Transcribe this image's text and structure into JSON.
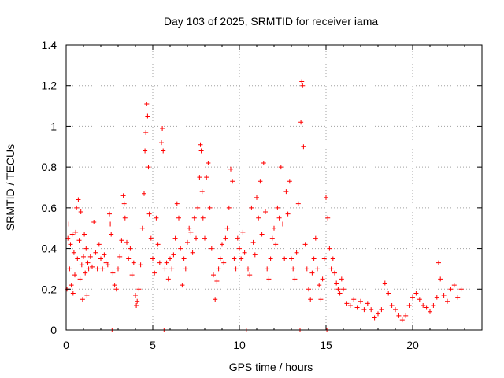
{
  "chart_data": {
    "type": "scatter",
    "title": "Day 103 of 2025, SRMTID for receiver iama",
    "xlabel": "GPS time / hours",
    "ylabel": "SRMTID / TECUs",
    "xlim": [
      0,
      24
    ],
    "ylim": [
      0,
      1.4
    ],
    "xticks": [
      0,
      5,
      10,
      15,
      20
    ],
    "xtick_labels": [
      "0",
      "5",
      "10",
      "15",
      "20"
    ],
    "yticks": [
      0,
      0.2,
      0.4,
      0.6,
      0.8,
      1.0,
      1.2,
      1.4
    ],
    "ytick_labels": [
      "0",
      "0.2",
      "0.4",
      "0.6",
      "0.8",
      "1",
      "1.2",
      "1.4"
    ],
    "grid": true,
    "marker": "+",
    "series": [
      {
        "name": "SRMTID",
        "color": "#ff0000",
        "points": [
          [
            0.05,
            0.2
          ],
          [
            0.1,
            0.45
          ],
          [
            0.15,
            0.52
          ],
          [
            0.2,
            0.3
          ],
          [
            0.25,
            0.42
          ],
          [
            0.3,
            0.22
          ],
          [
            0.35,
            0.47
          ],
          [
            0.4,
            0.18
          ],
          [
            0.45,
            0.38
          ],
          [
            0.5,
            0.27
          ],
          [
            0.55,
            0.48
          ],
          [
            0.6,
            0.6
          ],
          [
            0.65,
            0.35
          ],
          [
            0.7,
            0.64
          ],
          [
            0.75,
            0.44
          ],
          [
            0.8,
            0.25
          ],
          [
            0.85,
            0.58
          ],
          [
            0.9,
            0.32
          ],
          [
            0.95,
            0.15
          ],
          [
            1.0,
            0.36
          ],
          [
            1.05,
            0.47
          ],
          [
            1.1,
            0.28
          ],
          [
            1.15,
            0.4
          ],
          [
            1.2,
            0.17
          ],
          [
            1.25,
            0.33
          ],
          [
            1.3,
            0.3
          ],
          [
            1.4,
            0.36
          ],
          [
            1.5,
            0.31
          ],
          [
            1.6,
            0.53
          ],
          [
            1.7,
            0.38
          ],
          [
            1.8,
            0.3
          ],
          [
            1.9,
            0.42
          ],
          [
            2.0,
            0.35
          ],
          [
            2.1,
            0.3
          ],
          [
            2.2,
            0.37
          ],
          [
            2.3,
            0.33
          ],
          [
            2.4,
            0.32
          ],
          [
            2.5,
            0.57
          ],
          [
            2.55,
            0.52
          ],
          [
            2.6,
            0.47
          ],
          [
            2.65,
            0.0
          ],
          [
            2.7,
            0.28
          ],
          [
            2.8,
            0.22
          ],
          [
            2.9,
            0.2
          ],
          [
            3.0,
            0.3
          ],
          [
            3.1,
            0.36
          ],
          [
            3.2,
            0.44
          ],
          [
            3.3,
            0.66
          ],
          [
            3.35,
            0.62
          ],
          [
            3.4,
            0.55
          ],
          [
            3.5,
            0.43
          ],
          [
            3.6,
            0.35
          ],
          [
            3.7,
            0.4
          ],
          [
            3.8,
            0.27
          ],
          [
            3.9,
            0.33
          ],
          [
            4.0,
            0.17
          ],
          [
            4.05,
            0.12
          ],
          [
            4.1,
            0.14
          ],
          [
            4.2,
            0.2
          ],
          [
            4.3,
            0.32
          ],
          [
            4.4,
            0.5
          ],
          [
            4.5,
            0.67
          ],
          [
            4.55,
            0.88
          ],
          [
            4.6,
            0.97
          ],
          [
            4.65,
            1.11
          ],
          [
            4.7,
            1.05
          ],
          [
            4.75,
            0.8
          ],
          [
            4.8,
            0.57
          ],
          [
            4.9,
            0.45
          ],
          [
            5.0,
            0.35
          ],
          [
            5.1,
            0.28
          ],
          [
            5.2,
            0.55
          ],
          [
            5.3,
            0.42
          ],
          [
            5.4,
            0.33
          ],
          [
            5.5,
            0.92
          ],
          [
            5.55,
            0.99
          ],
          [
            5.6,
            0.88
          ],
          [
            5.65,
            0.0
          ],
          [
            5.7,
            0.3
          ],
          [
            5.8,
            0.33
          ],
          [
            5.9,
            0.25
          ],
          [
            6.0,
            0.35
          ],
          [
            6.1,
            0.3
          ],
          [
            6.2,
            0.37
          ],
          [
            6.3,
            0.45
          ],
          [
            6.4,
            0.62
          ],
          [
            6.5,
            0.55
          ],
          [
            6.6,
            0.4
          ],
          [
            6.7,
            0.22
          ],
          [
            6.8,
            0.35
          ],
          [
            6.9,
            0.3
          ],
          [
            7.0,
            0.43
          ],
          [
            7.1,
            0.5
          ],
          [
            7.2,
            0.48
          ],
          [
            7.3,
            0.38
          ],
          [
            7.4,
            0.55
          ],
          [
            7.5,
            0.45
          ],
          [
            7.6,
            0.6
          ],
          [
            7.7,
            0.75
          ],
          [
            7.75,
            0.91
          ],
          [
            7.8,
            0.88
          ],
          [
            7.85,
            0.68
          ],
          [
            7.9,
            0.55
          ],
          [
            8.0,
            0.45
          ],
          [
            8.1,
            0.75
          ],
          [
            8.2,
            0.82
          ],
          [
            8.25,
            0.0
          ],
          [
            8.3,
            0.6
          ],
          [
            8.4,
            0.4
          ],
          [
            8.5,
            0.27
          ],
          [
            8.6,
            0.15
          ],
          [
            8.7,
            0.24
          ],
          [
            8.8,
            0.3
          ],
          [
            8.9,
            0.35
          ],
          [
            9.0,
            0.42
          ],
          [
            9.1,
            0.33
          ],
          [
            9.2,
            0.45
          ],
          [
            9.3,
            0.5
          ],
          [
            9.4,
            0.6
          ],
          [
            9.5,
            0.79
          ],
          [
            9.6,
            0.73
          ],
          [
            9.7,
            0.35
          ],
          [
            9.8,
            0.3
          ],
          [
            9.9,
            0.45
          ],
          [
            10.0,
            0.4
          ],
          [
            10.1,
            0.35
          ],
          [
            10.2,
            0.48
          ],
          [
            10.3,
            0.38
          ],
          [
            10.4,
            0.0
          ],
          [
            10.5,
            0.3
          ],
          [
            10.6,
            0.27
          ],
          [
            10.7,
            0.6
          ],
          [
            10.8,
            0.43
          ],
          [
            10.9,
            0.37
          ],
          [
            11.0,
            0.65
          ],
          [
            11.1,
            0.55
          ],
          [
            11.2,
            0.73
          ],
          [
            11.3,
            0.47
          ],
          [
            11.4,
            0.82
          ],
          [
            11.5,
            0.58
          ],
          [
            11.6,
            0.3
          ],
          [
            11.7,
            0.25
          ],
          [
            11.8,
            0.35
          ],
          [
            11.9,
            0.45
          ],
          [
            12.0,
            0.5
          ],
          [
            12.1,
            0.42
          ],
          [
            12.2,
            0.6
          ],
          [
            12.3,
            0.55
          ],
          [
            12.4,
            0.8
          ],
          [
            12.5,
            0.52
          ],
          [
            12.6,
            0.35
          ],
          [
            12.7,
            0.68
          ],
          [
            12.8,
            0.57
          ],
          [
            12.9,
            0.73
          ],
          [
            13.0,
            0.35
          ],
          [
            13.1,
            0.3
          ],
          [
            13.2,
            0.25
          ],
          [
            13.3,
            0.38
          ],
          [
            13.4,
            0.62
          ],
          [
            13.5,
            0.0
          ],
          [
            13.55,
            1.02
          ],
          [
            13.6,
            1.22
          ],
          [
            13.65,
            1.2
          ],
          [
            13.7,
            0.9
          ],
          [
            13.8,
            0.42
          ],
          [
            13.9,
            0.3
          ],
          [
            14.0,
            0.2
          ],
          [
            14.1,
            0.15
          ],
          [
            14.2,
            0.28
          ],
          [
            14.3,
            0.35
          ],
          [
            14.4,
            0.45
          ],
          [
            14.5,
            0.3
          ],
          [
            14.6,
            0.22
          ],
          [
            14.7,
            0.15
          ],
          [
            14.8,
            0.25
          ],
          [
            14.9,
            0.35
          ],
          [
            15.0,
            0.65
          ],
          [
            15.05,
            0.0
          ],
          [
            15.1,
            0.55
          ],
          [
            15.2,
            0.4
          ],
          [
            15.3,
            0.3
          ],
          [
            15.4,
            0.35
          ],
          [
            15.5,
            0.28
          ],
          [
            15.6,
            0.23
          ],
          [
            15.7,
            0.2
          ],
          [
            15.8,
            0.18
          ],
          [
            15.9,
            0.25
          ],
          [
            16.0,
            0.2
          ],
          [
            16.2,
            0.13
          ],
          [
            16.4,
            0.12
          ],
          [
            16.6,
            0.15
          ],
          [
            16.8,
            0.11
          ],
          [
            17.0,
            0.14
          ],
          [
            17.2,
            0.1
          ],
          [
            17.4,
            0.13
          ],
          [
            17.6,
            0.1
          ],
          [
            17.8,
            0.06
          ],
          [
            18.0,
            0.08
          ],
          [
            18.2,
            0.1
          ],
          [
            18.4,
            0.23
          ],
          [
            18.6,
            0.18
          ],
          [
            18.8,
            0.12
          ],
          [
            19.0,
            0.1
          ],
          [
            19.2,
            0.07
          ],
          [
            19.4,
            0.05
          ],
          [
            19.6,
            0.07
          ],
          [
            19.8,
            0.12
          ],
          [
            20.0,
            0.16
          ],
          [
            20.2,
            0.18
          ],
          [
            20.4,
            0.15
          ],
          [
            20.6,
            0.12
          ],
          [
            20.8,
            0.11
          ],
          [
            21.0,
            0.09
          ],
          [
            21.2,
            0.12
          ],
          [
            21.4,
            0.16
          ],
          [
            21.5,
            0.33
          ],
          [
            21.6,
            0.25
          ],
          [
            21.8,
            0.17
          ],
          [
            22.0,
            0.14
          ],
          [
            22.2,
            0.2
          ],
          [
            22.4,
            0.22
          ],
          [
            22.6,
            0.16
          ],
          [
            22.8,
            0.2
          ]
        ]
      }
    ]
  }
}
